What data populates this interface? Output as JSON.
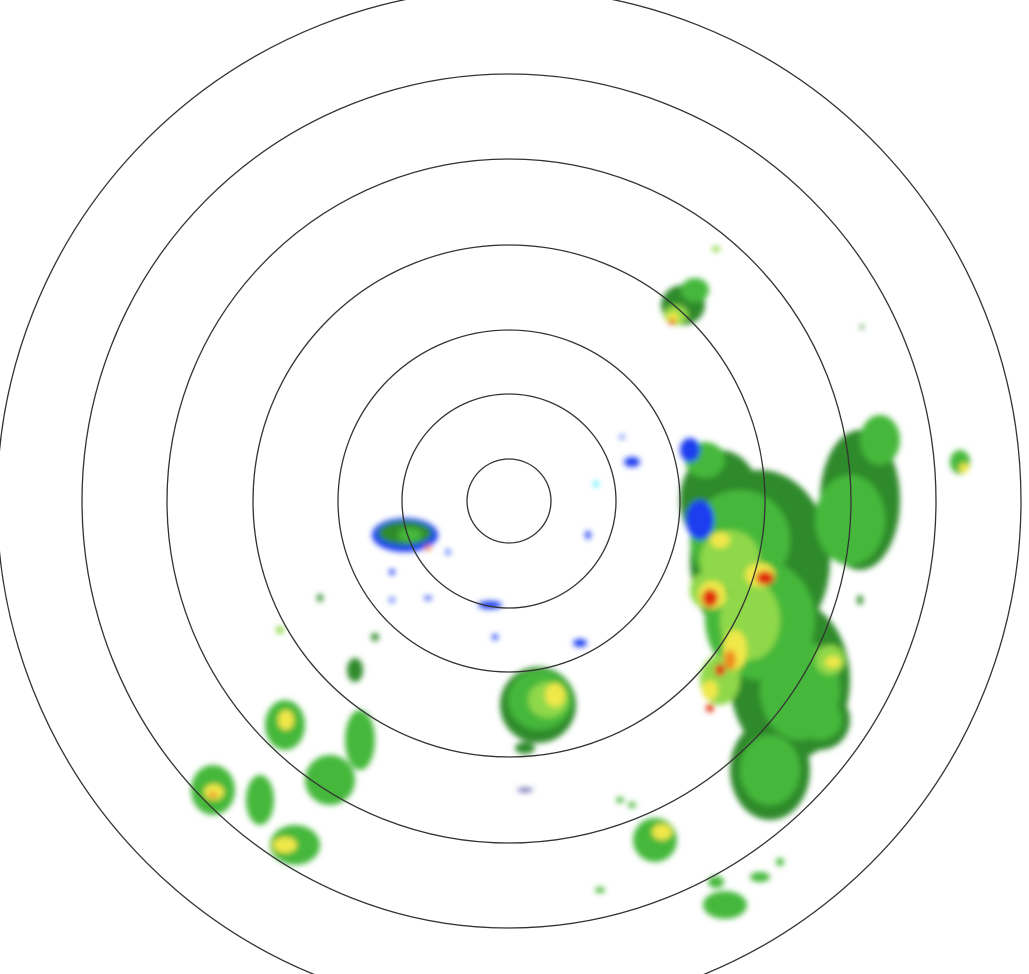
{
  "radar": {
    "range_ring_count": 7,
    "ring_color": "#333333",
    "background": "#ffffff",
    "reflectivity_colors": {
      "very_light": "#5a5aa8",
      "light_blue": "#1a3cf0",
      "cyan": "#00e6f0",
      "dark_green": "#2f8a2a",
      "green": "#45b83a",
      "light_green": "#8fd84a",
      "yellow": "#f0e84a",
      "orange": "#f08a1a",
      "red": "#e02a10"
    }
  }
}
